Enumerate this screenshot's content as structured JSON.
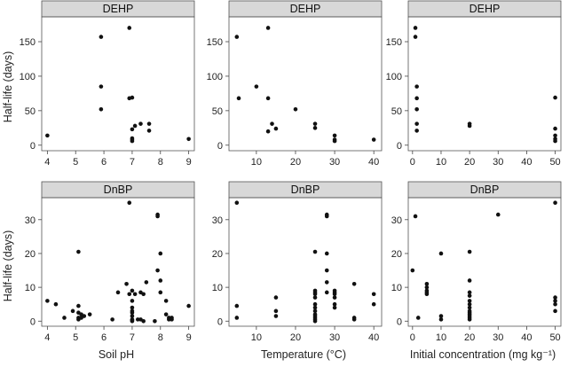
{
  "figure": {
    "y_label": "Half-life (days)",
    "x_labels": [
      "Soil pH",
      "Temperature (°C)",
      "Initial concentration (mg kg⁻¹)"
    ]
  },
  "chart_data": [
    {
      "type": "scatter",
      "panel": "DEHP-pH",
      "title": "DEHP",
      "xlabel": "",
      "ylabel": "Half-life (days)",
      "xlim": [
        3.8,
        9.2
      ],
      "ylim": [
        -8,
        186
      ],
      "xticks": [
        4,
        5,
        6,
        7,
        8,
        9
      ],
      "yticks": [
        0,
        50,
        100,
        150
      ],
      "x": [
        4,
        5.9,
        5.9,
        5.9,
        6.9,
        6.9,
        7,
        7,
        7,
        7,
        7,
        7.1,
        7.3,
        7.6,
        7.6,
        9
      ],
      "y": [
        14,
        157,
        85,
        52,
        170,
        68,
        69,
        6,
        8,
        10,
        23,
        28,
        31,
        31,
        21,
        9
      ]
    },
    {
      "type": "scatter",
      "panel": "DEHP-temp",
      "title": "DEHP",
      "xlabel": "",
      "ylabel": "",
      "xlim": [
        3,
        42
      ],
      "ylim": [
        -8,
        186
      ],
      "xticks": [
        10,
        20,
        30,
        40
      ],
      "yticks": [
        0,
        50,
        100,
        150
      ],
      "x": [
        5,
        5.5,
        10,
        13,
        13,
        13,
        14,
        15,
        20,
        25,
        25,
        30,
        30,
        30,
        40
      ],
      "y": [
        157,
        68,
        85,
        170,
        68,
        20,
        31,
        24,
        52,
        31,
        25,
        14,
        8,
        6,
        8
      ]
    },
    {
      "type": "scatter",
      "panel": "DEHP-conc",
      "title": "DEHP",
      "xlabel": "",
      "ylabel": "",
      "xlim": [
        -1.5,
        52
      ],
      "ylim": [
        -8,
        186
      ],
      "xticks": [
        0,
        10,
        20,
        30,
        40,
        50
      ],
      "yticks": [
        0,
        50,
        100,
        150
      ],
      "x": [
        1,
        1,
        1.5,
        1.5,
        1.5,
        1.5,
        1.5,
        20,
        20,
        50,
        50,
        50,
        50,
        50
      ],
      "y": [
        170,
        157,
        85,
        68,
        52,
        31,
        21,
        31,
        28,
        69,
        24,
        14,
        9,
        6
      ]
    },
    {
      "type": "scatter",
      "panel": "DnBP-pH",
      "title": "DnBP",
      "xlabel": "Soil pH",
      "ylabel": "Half-life (days)",
      "xlim": [
        3.8,
        9.2
      ],
      "ylim": [
        -1.5,
        36.5
      ],
      "xticks": [
        4,
        5,
        6,
        7,
        8,
        9
      ],
      "yticks": [
        0,
        10,
        20,
        30
      ],
      "x": [
        4,
        4.3,
        4.6,
        4.9,
        5.1,
        5.1,
        5.1,
        5.1,
        5.1,
        5.2,
        5.2,
        5.3,
        5.5,
        6.3,
        6.5,
        6.8,
        6.9,
        6.9,
        7,
        7,
        7,
        7,
        7,
        7,
        7,
        7,
        7,
        7.1,
        7.2,
        7.3,
        7.3,
        7.4,
        7.4,
        7.5,
        7.8,
        7.9,
        7.9,
        7.9,
        8,
        8,
        8,
        8.2,
        8.2,
        8.3,
        8.3,
        8.4,
        8.4,
        9
      ],
      "y": [
        6,
        5,
        1,
        3,
        20.5,
        4.5,
        2.5,
        1,
        0.5,
        1,
        2,
        1.5,
        2,
        0.5,
        8.5,
        11,
        8,
        35,
        9,
        6,
        4,
        3,
        2.5,
        1.5,
        0.5,
        0,
        0.3,
        8,
        0.5,
        8.5,
        0.5,
        8,
        0,
        11.5,
        0,
        31.5,
        31,
        15,
        20,
        12,
        8.5,
        6,
        2,
        1,
        0.5,
        0.5,
        1,
        4.5
      ]
    },
    {
      "type": "scatter",
      "panel": "DnBP-temp",
      "title": "DnBP",
      "xlabel": "Temperature (°C)",
      "ylabel": "",
      "xlim": [
        3,
        42
      ],
      "ylim": [
        -1.5,
        36.5
      ],
      "xticks": [
        10,
        20,
        30,
        40
      ],
      "yticks": [
        0,
        10,
        20,
        30
      ],
      "x": [
        5,
        5,
        5,
        15,
        15,
        15,
        25,
        25,
        25,
        25,
        25,
        25,
        25,
        25,
        25,
        25,
        25,
        25,
        25,
        28,
        28,
        28,
        28,
        28,
        28,
        30,
        30,
        30,
        30,
        30,
        30,
        35,
        35,
        35,
        40,
        40
      ],
      "y": [
        35,
        4.5,
        1,
        7,
        3,
        1.5,
        20.5,
        9,
        8.5,
        8,
        7,
        5,
        4,
        3,
        2,
        1.5,
        1,
        0.5,
        0,
        31.5,
        31,
        20,
        15,
        11.5,
        8.5,
        9,
        8.5,
        8,
        7,
        5,
        4,
        11,
        1,
        0.5,
        8,
        5
      ]
    },
    {
      "type": "scatter",
      "panel": "DnBP-conc",
      "title": "DnBP",
      "xlabel": "Initial concentration (mg kg⁻¹)",
      "ylabel": "",
      "xlim": [
        -1.5,
        52
      ],
      "ylim": [
        -1.5,
        36.5
      ],
      "xticks": [
        0,
        10,
        20,
        30,
        40,
        50
      ],
      "yticks": [
        0,
        10,
        20,
        30
      ],
      "x": [
        0,
        1,
        2,
        5,
        5,
        5,
        5,
        5,
        10,
        10,
        10,
        20,
        20,
        20,
        20,
        20,
        20,
        20,
        20,
        20,
        20,
        20,
        20,
        20,
        30,
        50,
        50,
        50,
        50,
        50
      ],
      "y": [
        15,
        31,
        1,
        11,
        9,
        8.5,
        8,
        10,
        20,
        1.5,
        0.5,
        20.5,
        12,
        8.5,
        7.5,
        6,
        5,
        4,
        3,
        2.5,
        2,
        1.5,
        1,
        0.5,
        31.5,
        35,
        7,
        6,
        5,
        3
      ]
    }
  ]
}
